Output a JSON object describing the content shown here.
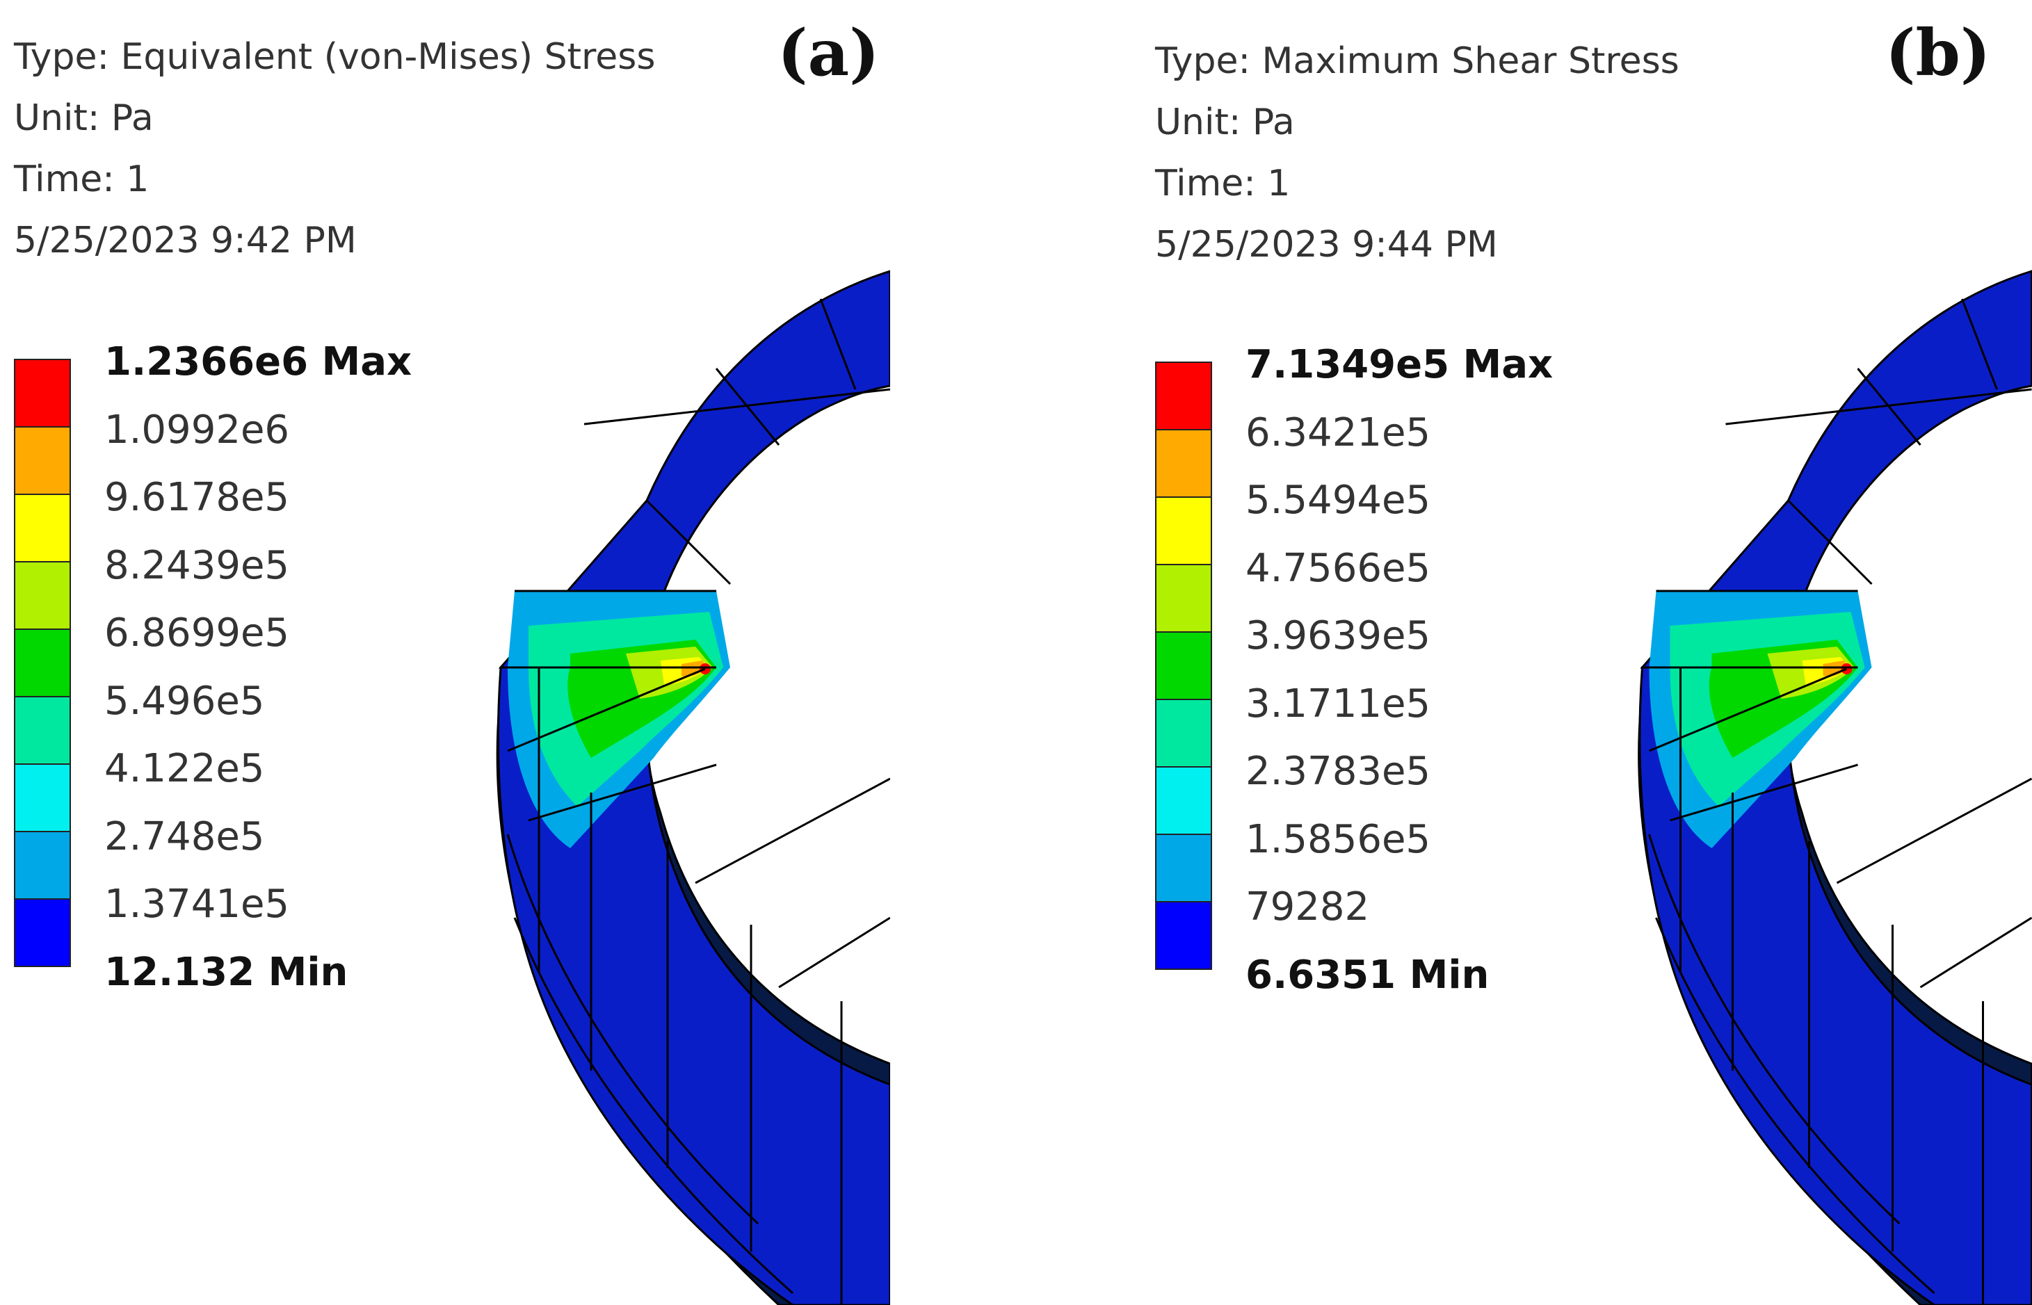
{
  "colors": {
    "band_0_max": "#ff0000",
    "band_1": "#ffaa00",
    "band_2": "#ffff00",
    "band_3": "#b0f000",
    "band_4": "#00d800",
    "band_5": "#00e8a0",
    "band_6": "#00f0f0",
    "band_7": "#00a8e8",
    "band_8_min": "#0000ff",
    "model_dark": "#061a45",
    "model_blue": "#0a1ec8"
  },
  "panels": [
    {
      "tag": "(a)",
      "type_line": "Type: Equivalent (von-Mises) Stress",
      "unit_line": "Unit: Pa",
      "time_line": "Time: 1",
      "date_line": "5/25/2023 9:42 PM",
      "legend_labels": [
        "1.2366e6 Max",
        "1.0992e6",
        "9.6178e5",
        "8.2439e5",
        "6.8699e5",
        "5.496e5",
        "4.122e5",
        "2.748e5",
        "1.3741e5",
        "12.132 Min"
      ]
    },
    {
      "tag": "(b)",
      "type_line": "Type: Maximum Shear Stress",
      "unit_line": "Unit: Pa",
      "time_line": "Time: 1",
      "date_line": "5/25/2023 9:44 PM",
      "legend_labels": [
        "7.1349e5 Max",
        "6.3421e5",
        "5.5494e5",
        "4.7566e5",
        "3.9639e5",
        "3.1711e5",
        "2.3783e5",
        "1.5856e5",
        "79282",
        "6.6351 Min"
      ]
    }
  ]
}
